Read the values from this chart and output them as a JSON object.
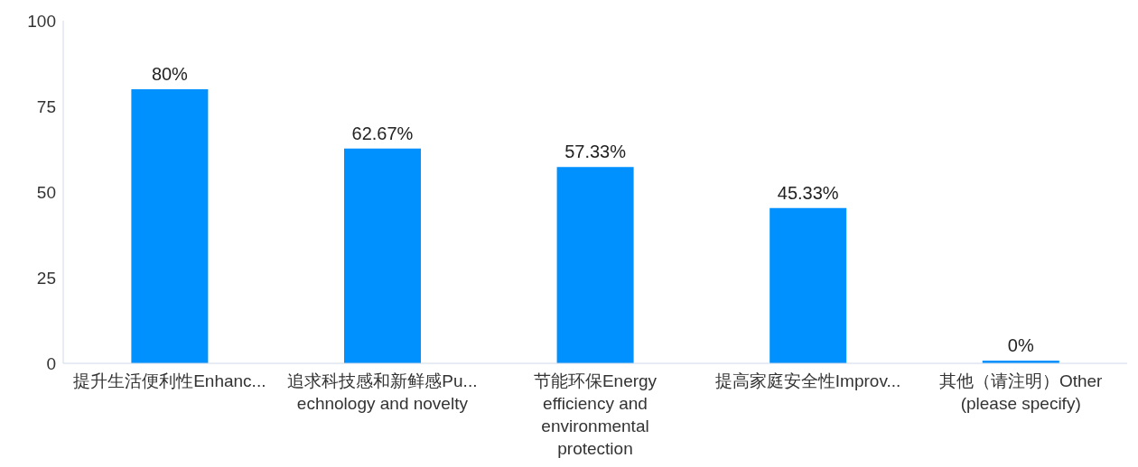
{
  "chart_data": {
    "type": "bar",
    "categories": [
      "提升生活便利性Enhanc...",
      "追求科技感和新鲜感Pu... echnology and novelty",
      "节能环保Energy efficiency and environmental protection",
      "提高家庭安全性Improv...",
      "其他（请注明）Other (please specify)"
    ],
    "values": [
      80,
      62.67,
      57.33,
      45.33,
      0
    ],
    "value_labels": [
      "80%",
      "62.67%",
      "57.33%",
      "45.33%",
      "0%"
    ],
    "color": "#0091ff",
    "ylim": [
      0,
      100
    ],
    "yticks": [
      0,
      25,
      50,
      75,
      100
    ],
    "grid": false
  }
}
